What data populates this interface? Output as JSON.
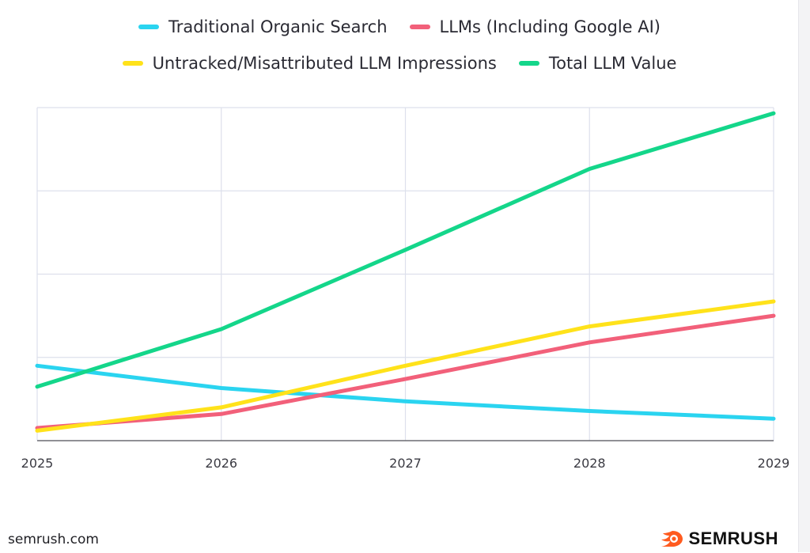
{
  "colors": {
    "traditional": "#2ad4f0",
    "llms": "#f2607a",
    "untracked": "#ffe21a",
    "total": "#14d68a",
    "grid": "#dde0ec",
    "axis": "#6b6b72",
    "brand_orange": "#ff5b1f"
  },
  "legend": {
    "row1": [
      {
        "label": "Traditional Organic Search",
        "color": "#2ad4f0"
      },
      {
        "label": "LLMs (Including Google AI)",
        "color": "#f2607a"
      }
    ],
    "row2": [
      {
        "label": "Untracked/Misattributed LLM Impressions",
        "color": "#ffe21a"
      },
      {
        "label": "Total LLM Value",
        "color": "#14d68a"
      }
    ]
  },
  "footer": {
    "source": "semrush.com",
    "brand": "SEMRUSH",
    "brand_icon": "semrush-fire-icon"
  },
  "chart_data": {
    "type": "line",
    "x": [
      "2025",
      "2026",
      "2027",
      "2028",
      "2029"
    ],
    "ylim": [
      0,
      100
    ],
    "grid": true,
    "legend_position": "top",
    "series": [
      {
        "name": "Traditional Organic Search",
        "color": "#2ad4f0",
        "values": [
          22.5,
          15.8,
          11.8,
          8.9,
          6.6
        ]
      },
      {
        "name": "LLMs (Including Google AI)",
        "color": "#f2607a",
        "values": [
          3.8,
          8.0,
          18.5,
          29.5,
          37.5
        ]
      },
      {
        "name": "Untracked/Misattributed LLM Impressions",
        "color": "#ffe21a",
        "values": [
          3.0,
          10.0,
          22.5,
          34.3,
          41.8
        ]
      },
      {
        "name": "Total LLM Value",
        "color": "#14d68a",
        "values": [
          16.2,
          33.5,
          57.3,
          81.6,
          98.3
        ]
      }
    ]
  }
}
